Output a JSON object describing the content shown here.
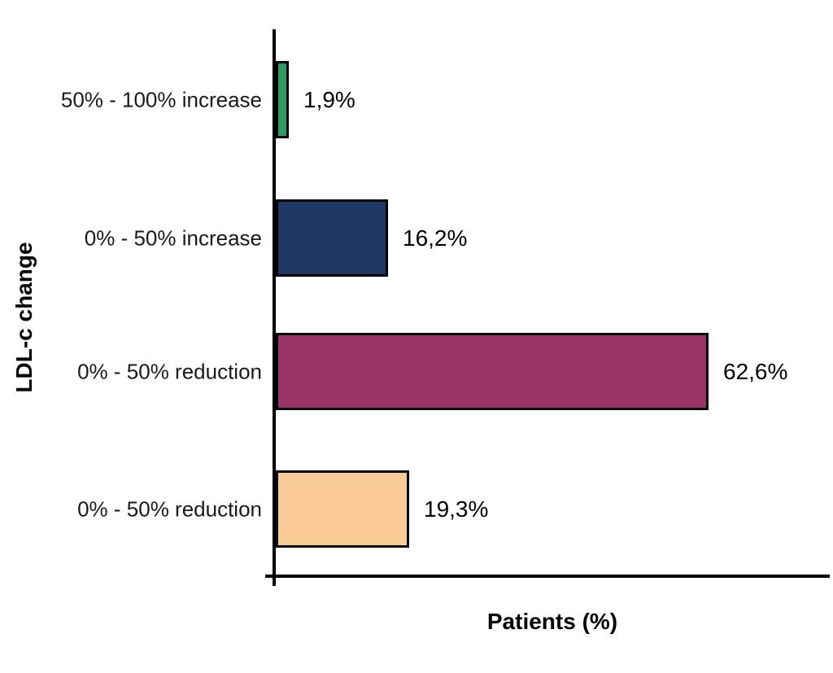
{
  "page": {
    "background": "#ffffff"
  },
  "chart_data": {
    "type": "bar",
    "orientation": "horizontal",
    "title": "",
    "xlabel": "Patients (%)",
    "ylabel": "LDL-c change",
    "xlim": [
      0,
      80
    ],
    "grid": false,
    "legend": false,
    "categories": [
      "50% - 100% increase",
      "0% - 50% increase",
      "0% - 50% reduction",
      "0% - 50% reduction"
    ],
    "values": [
      1.9,
      16.2,
      62.6,
      19.3
    ],
    "value_labels": [
      "1,9%",
      "16,2%",
      "62,6%",
      "19,3%"
    ],
    "bar_colors": [
      "#2E9B66",
      "#203864",
      "#993366",
      "#F8CB97"
    ],
    "bar_border_color": "#000000",
    "axis_color": "#000000"
  }
}
